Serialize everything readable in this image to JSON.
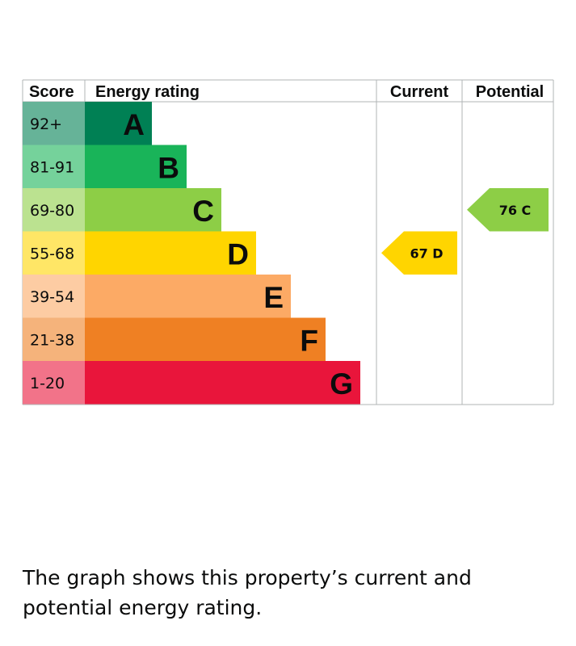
{
  "chart_data": {
    "type": "bar",
    "headers": {
      "score": "Score",
      "rating": "Energy rating",
      "current": "Current",
      "potential": "Potential"
    },
    "bands": [
      {
        "score": "92+",
        "letter": "A",
        "color": "#008054",
        "score_bg": "#66b398"
      },
      {
        "score": "81-91",
        "letter": "B",
        "color": "#19b459",
        "score_bg": "#75d29b"
      },
      {
        "score": "69-80",
        "letter": "C",
        "color": "#8dce46",
        "score_bg": "#bbe290"
      },
      {
        "score": "55-68",
        "letter": "D",
        "color": "#ffd500",
        "score_bg": "#ffe666"
      },
      {
        "score": "39-54",
        "letter": "E",
        "color": "#fcaa65",
        "score_bg": "#fdcca3"
      },
      {
        "score": "21-38",
        "letter": "F",
        "color": "#ef8023",
        "score_bg": "#f5b37b"
      },
      {
        "score": "1-20",
        "letter": "G",
        "color": "#e9153b",
        "score_bg": "#f27389"
      }
    ],
    "current": {
      "value": 67,
      "band": "D",
      "label": "67 D",
      "color": "#ffd500"
    },
    "potential": {
      "value": 76,
      "band": "C",
      "label": "76 C",
      "color": "#8dce46"
    }
  },
  "caption": "The graph shows this property’s current and potential energy rating."
}
